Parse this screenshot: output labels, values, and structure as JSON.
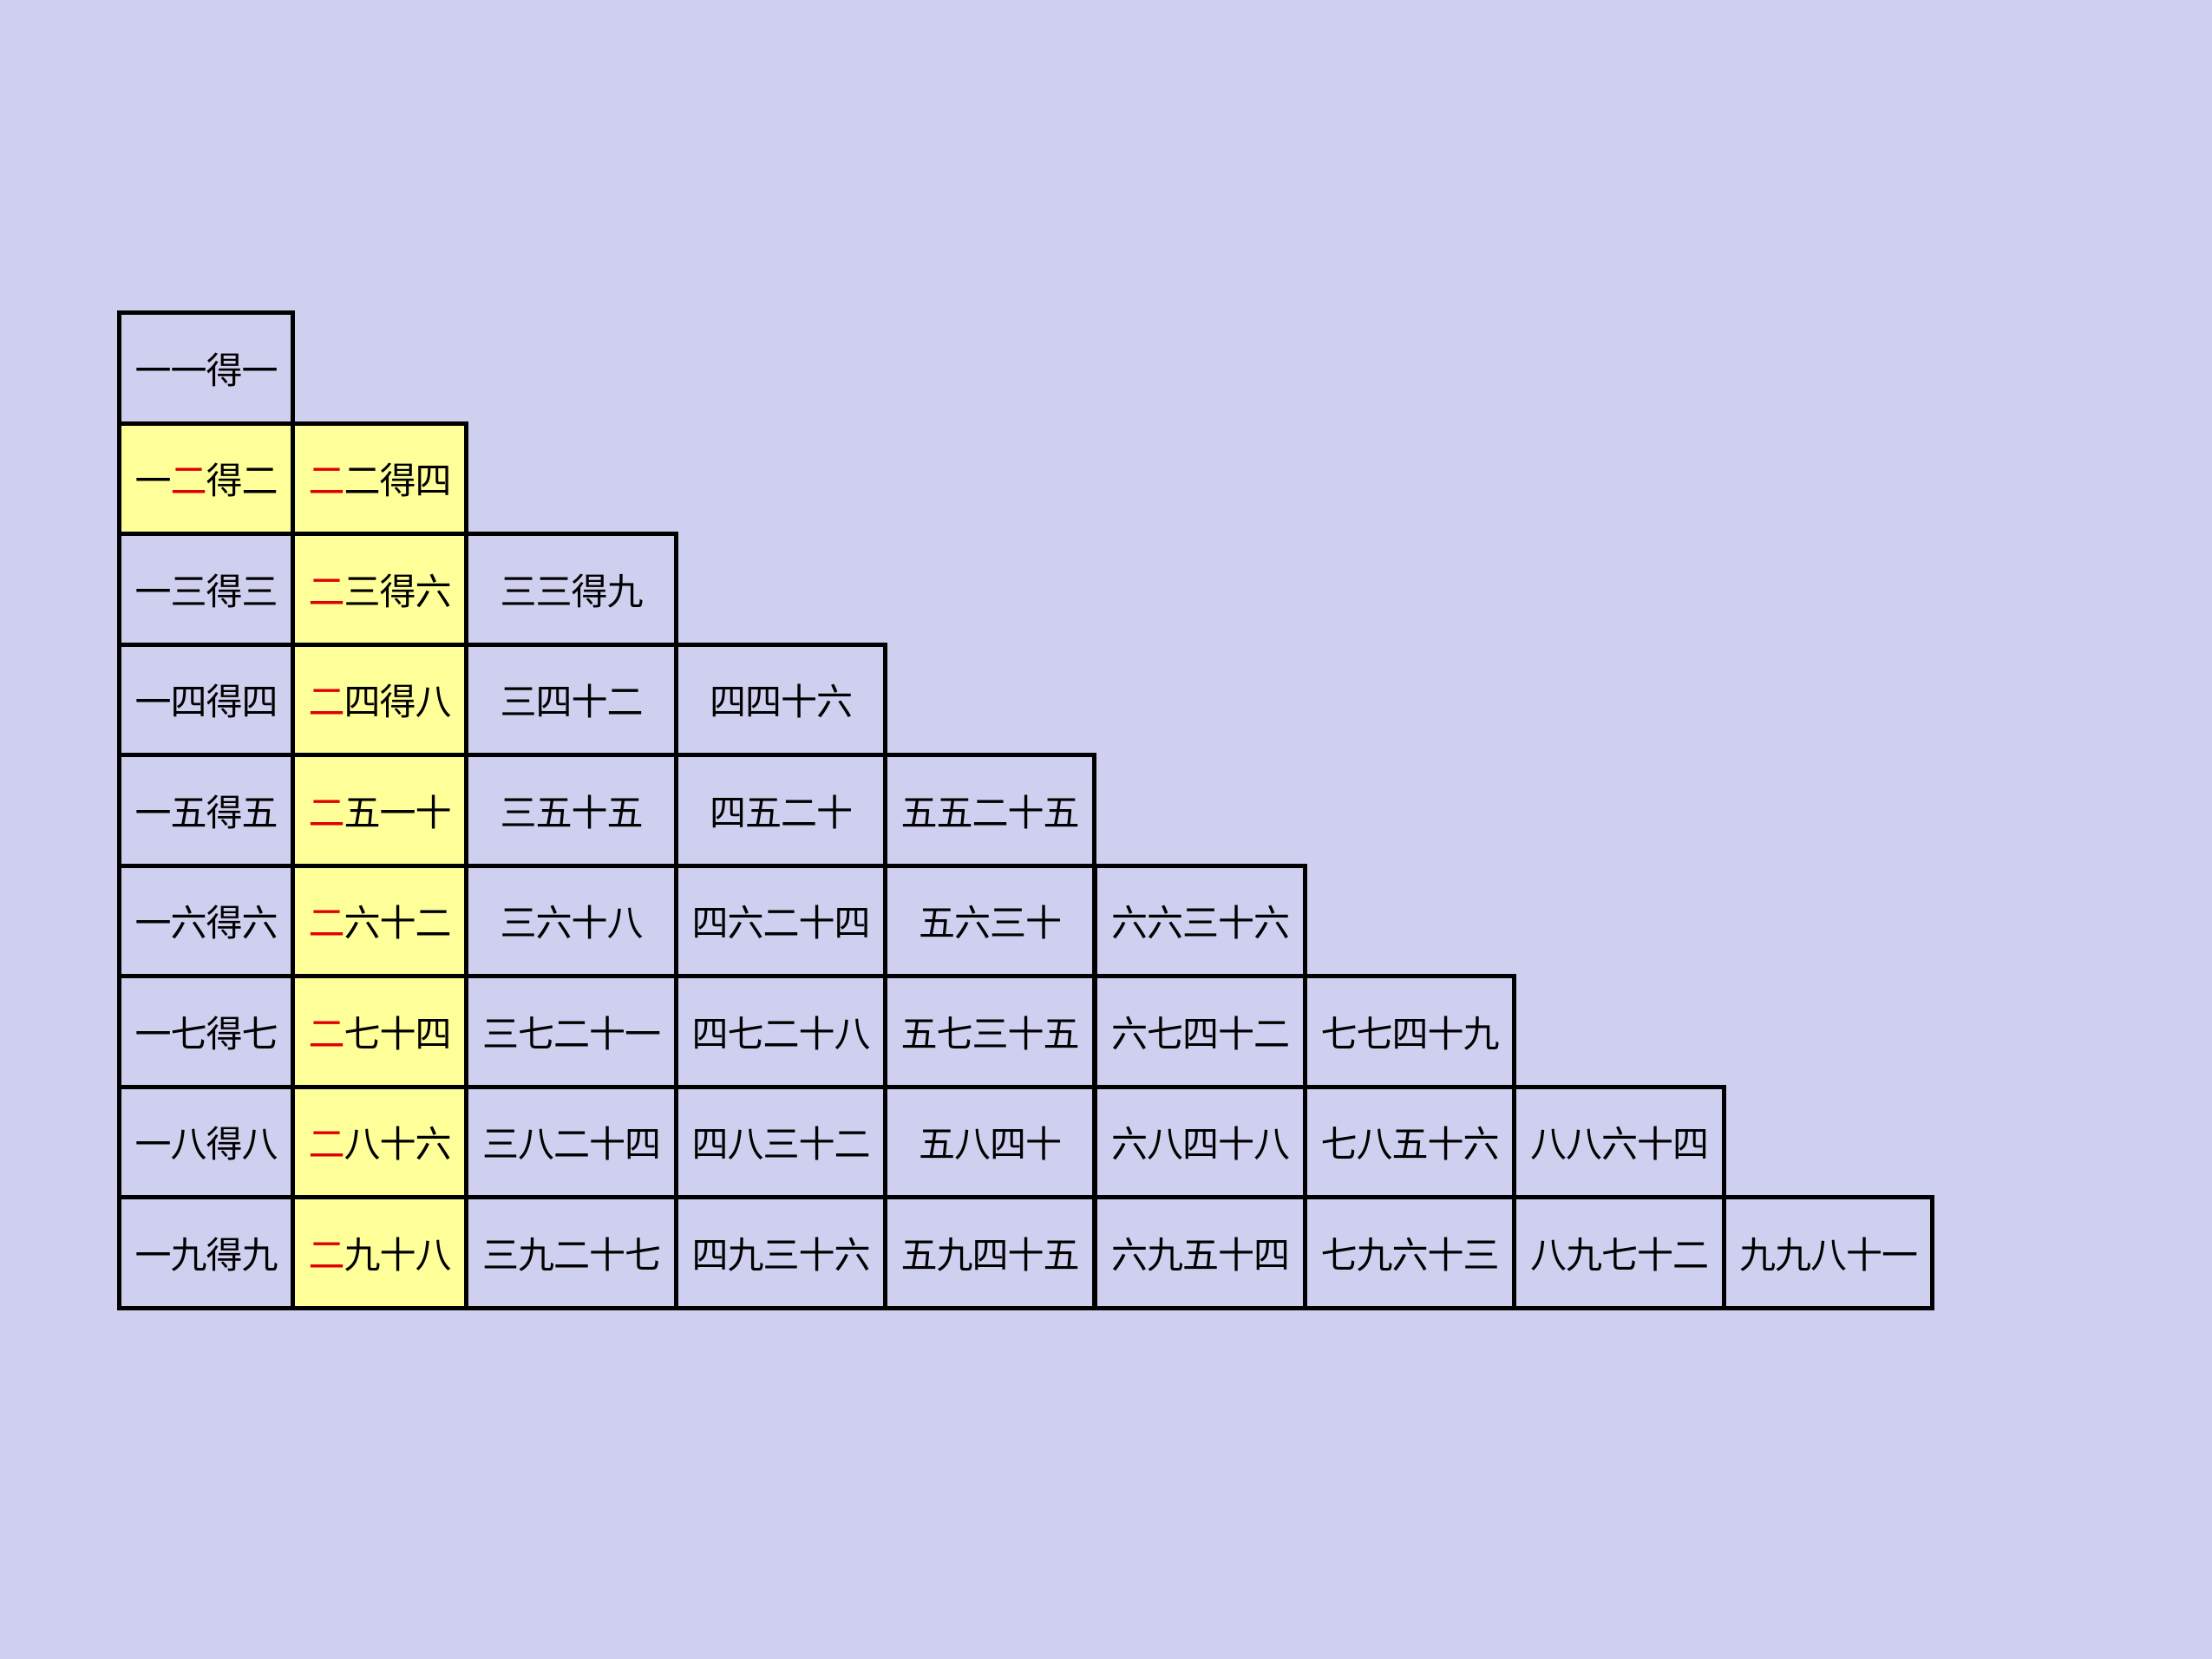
{
  "table": {
    "title": "",
    "highlight_color": "#ffff99",
    "accent_color": "#e00000",
    "background_color": "#cfd0ef",
    "highlighted_column": 2,
    "highlighted_row": 2,
    "rows": [
      [
        "一一得一"
      ],
      [
        "一二得二",
        "二二得四"
      ],
      [
        "一三得三",
        "二三得六",
        "三三得九"
      ],
      [
        "一四得四",
        "二四得八",
        "三四十二",
        "四四十六"
      ],
      [
        "一五得五",
        "二五一十",
        "三五十五",
        "四五二十",
        "五五二十五"
      ],
      [
        "一六得六",
        "二六十二",
        "三六十八",
        "四六二十四",
        "五六三十",
        "六六三十六"
      ],
      [
        "一七得七",
        "二七十四",
        "三七二十一",
        "四七二十八",
        "五七三十五",
        "六七四十二",
        "七七四十九"
      ],
      [
        "一八得八",
        "二八十六",
        "三八二十四",
        "四八三十二",
        "五八四十",
        "六八四十八",
        "七八五十六",
        "八八六十四"
      ],
      [
        "一九得九",
        "二九十八",
        "三九二十七",
        "四九三十六",
        "五九四十五",
        "六九五十四",
        "七九六十三",
        "八九七十二",
        "九九八十一"
      ]
    ]
  }
}
